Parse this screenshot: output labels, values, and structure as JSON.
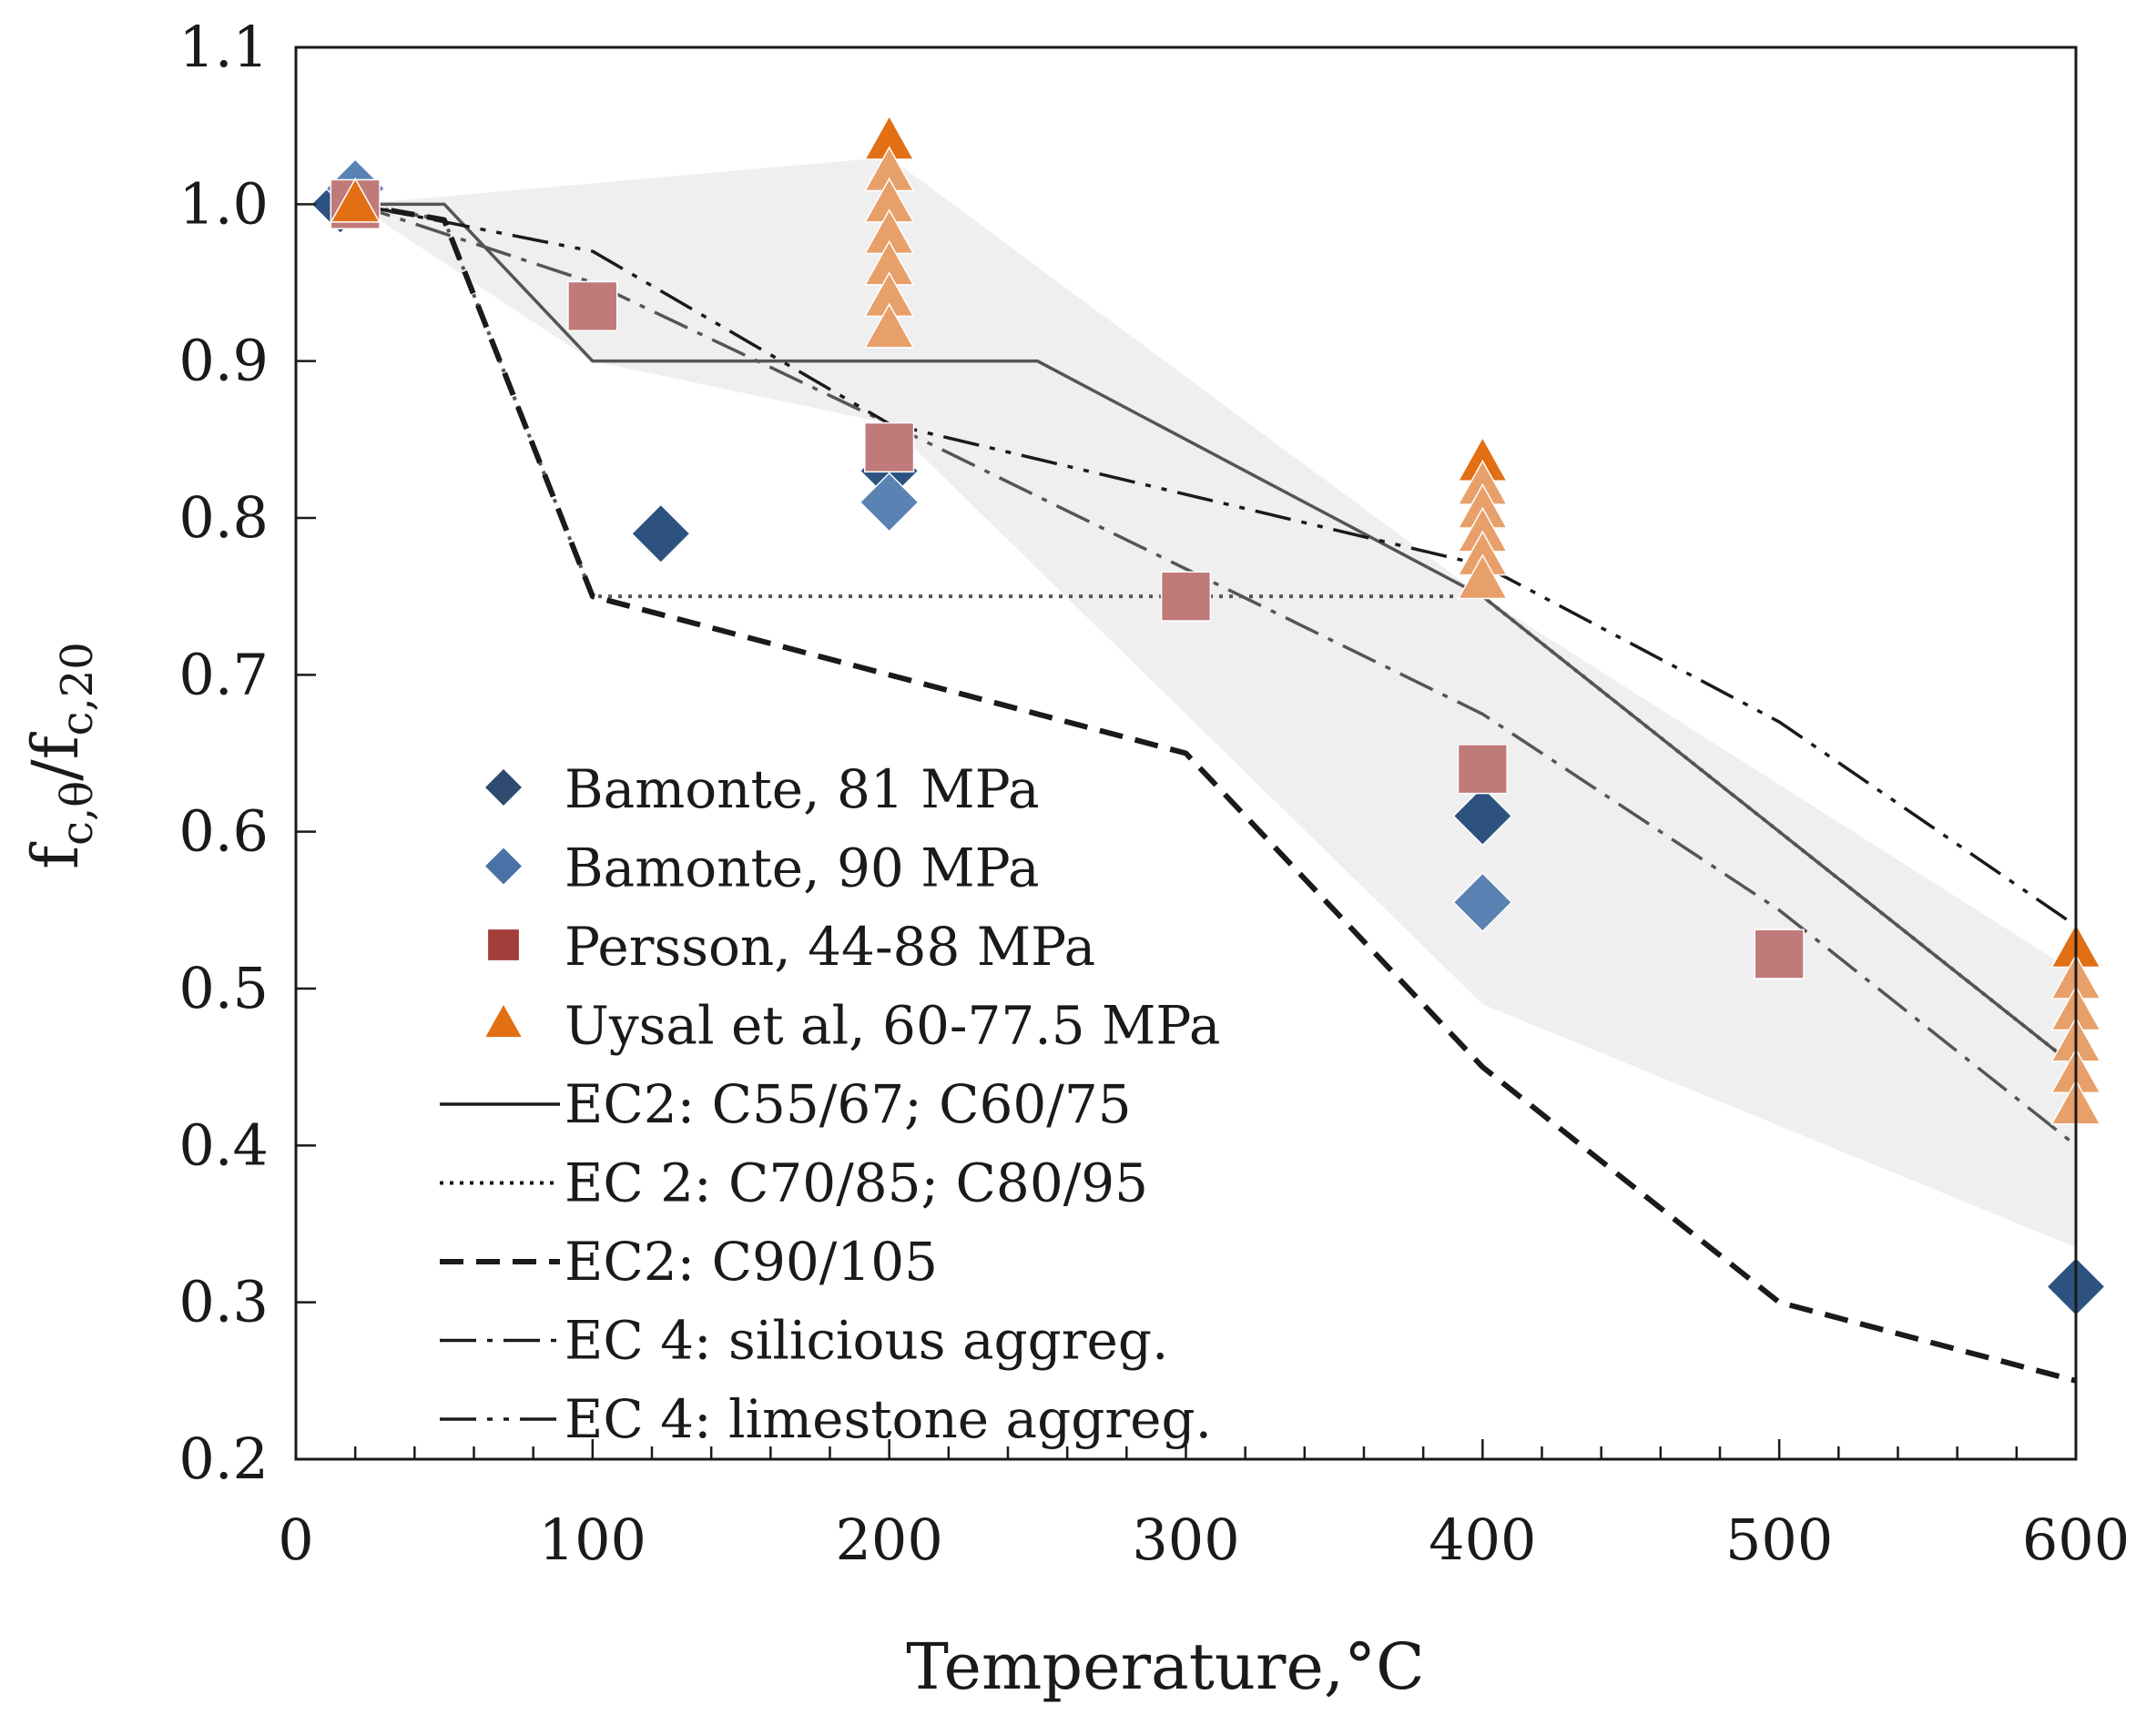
{
  "chart_data": {
    "type": "scatter",
    "title": "",
    "xlabel": "Temperature,°C",
    "ylabel": {
      "main": "f",
      "sub1": "c,θ",
      "sep": "/f",
      "sub2": "c,20"
    },
    "xlim": [
      0,
      600
    ],
    "ylim": [
      0.2,
      1.1
    ],
    "x_ticks": [
      "0",
      "100",
      "200",
      "300",
      "400",
      "500",
      "600"
    ],
    "y_ticks": [
      "0.2",
      "0.3",
      "0.4",
      "0.5",
      "0.6",
      "0.7",
      "0.8",
      "0.9",
      "1.0",
      "1.1"
    ],
    "grid": false,
    "legend_position": "center-left",
    "shaded_band": {
      "upper": [
        [
          20,
          1.0
        ],
        [
          200,
          1.03
        ],
        [
          400,
          0.75
        ],
        [
          600,
          0.51
        ]
      ],
      "lower": [
        [
          20,
          1.0
        ],
        [
          100,
          0.9
        ],
        [
          200,
          0.86
        ],
        [
          400,
          0.49
        ],
        [
          600,
          0.335
        ]
      ],
      "color": "#efefef"
    },
    "scatter_series": [
      {
        "name": "Bamonte, 81 MPa",
        "marker": "diamond",
        "color": "#2d5280",
        "legend_color": "#2e4a6e",
        "points": [
          [
            15,
            1.0
          ],
          [
            123,
            0.79
          ],
          [
            200,
            0.83
          ],
          [
            400,
            0.61
          ],
          [
            600,
            0.31
          ]
        ]
      },
      {
        "name": "Bamonte, 90 MPa",
        "marker": "diamond",
        "color": "#5a82b3",
        "legend_color": "#4a72a6",
        "points": [
          [
            20,
            1.01
          ],
          [
            200,
            0.81
          ],
          [
            400,
            0.555
          ]
        ]
      },
      {
        "name": "Persson, 44-88 MPa",
        "marker": "square",
        "color": "#c07a79",
        "legend_color": "#a43e3b",
        "points": [
          [
            20,
            1.0
          ],
          [
            100,
            0.935
          ],
          [
            200,
            0.845
          ],
          [
            300,
            0.75
          ],
          [
            400,
            0.64
          ],
          [
            500,
            0.522
          ]
        ]
      },
      {
        "name": "Uysal et al, 60-77.5 MPa",
        "marker": "triangle",
        "color": "#e8a06a",
        "legend_color": "#e26f14",
        "points": [
          [
            20,
            1.0
          ],
          [
            200,
            1.04
          ],
          [
            200,
            1.02
          ],
          [
            200,
            1.0
          ],
          [
            200,
            0.98
          ],
          [
            200,
            0.96
          ],
          [
            200,
            0.94
          ],
          [
            200,
            0.92
          ],
          [
            400,
            0.835
          ],
          [
            400,
            0.82
          ],
          [
            400,
            0.805
          ],
          [
            400,
            0.79
          ],
          [
            400,
            0.775
          ],
          [
            400,
            0.76
          ],
          [
            600,
            0.525
          ],
          [
            600,
            0.505
          ],
          [
            600,
            0.485
          ],
          [
            600,
            0.465
          ],
          [
            600,
            0.445
          ],
          [
            600,
            0.425
          ]
        ]
      }
    ],
    "line_series": [
      {
        "name": "EC2: C55/67; C60/75",
        "style": "solid",
        "color": "#555555",
        "points": [
          [
            20,
            1.0
          ],
          [
            50,
            1.0
          ],
          [
            100,
            0.9
          ],
          [
            250,
            0.9
          ],
          [
            400,
            0.75
          ],
          [
            500,
            0.6
          ],
          [
            600,
            0.45
          ]
        ]
      },
      {
        "name": "EC 2: C70/85; C80/95",
        "style": "dotted",
        "color": "#555555",
        "points": [
          [
            20,
            1.0
          ],
          [
            50,
            0.99
          ],
          [
            100,
            0.75
          ],
          [
            400,
            0.75
          ],
          [
            500,
            0.6
          ],
          [
            600,
            0.45
          ]
        ]
      },
      {
        "name": "EC2: C90/105",
        "style": "dashed",
        "color": "#1a1a1a",
        "points": [
          [
            20,
            1.0
          ],
          [
            50,
            0.99
          ],
          [
            100,
            0.75
          ],
          [
            250,
            0.675
          ],
          [
            300,
            0.65
          ],
          [
            400,
            0.45
          ],
          [
            500,
            0.3
          ],
          [
            600,
            0.25
          ]
        ]
      },
      {
        "name": "EC 4: silicious aggreg.",
        "style": "dashdot",
        "color": "#555555",
        "points": [
          [
            20,
            1.0
          ],
          [
            100,
            0.95
          ],
          [
            200,
            0.86
          ],
          [
            400,
            0.675
          ],
          [
            500,
            0.55
          ],
          [
            600,
            0.4
          ]
        ]
      },
      {
        "name": "EC 4: limestone aggreg.",
        "style": "dashdotdot",
        "color": "#1a1a1a",
        "points": [
          [
            20,
            1.0
          ],
          [
            100,
            0.97
          ],
          [
            200,
            0.86
          ],
          [
            400,
            0.77
          ],
          [
            500,
            0.67
          ],
          [
            600,
            0.54
          ]
        ]
      }
    ]
  }
}
